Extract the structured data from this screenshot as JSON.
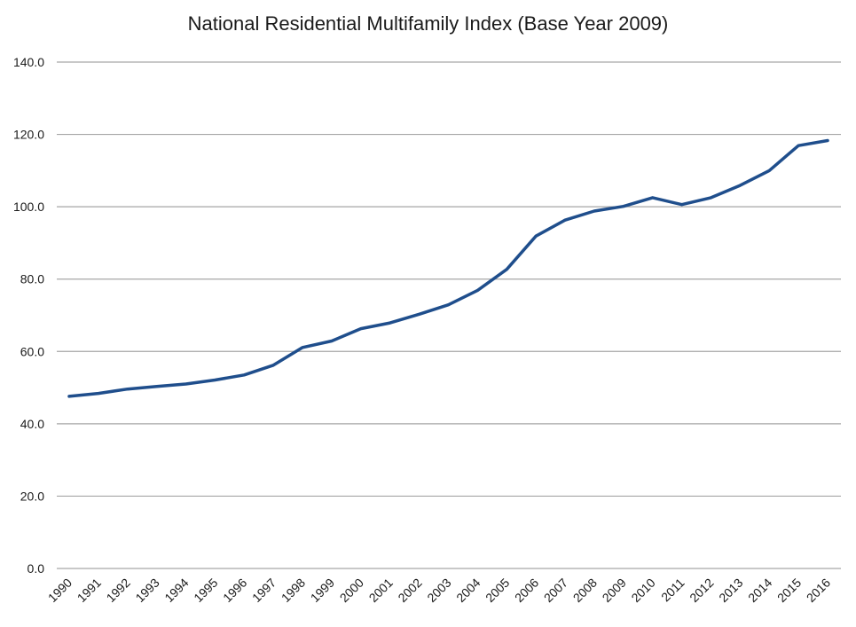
{
  "chart_data": {
    "type": "line",
    "title": "National Residential Multifamily Index (Base Year 2009)",
    "xlabel": "",
    "ylabel": "",
    "categories": [
      "1990",
      "1991",
      "1992",
      "1993",
      "1994",
      "1995",
      "1996",
      "1997",
      "1998",
      "1999",
      "2000",
      "2001",
      "2002",
      "2003",
      "2004",
      "2005",
      "2006",
      "2007",
      "2008",
      "2009",
      "2010",
      "2011",
      "2012",
      "2013",
      "2014",
      "2015",
      "2016"
    ],
    "series": [
      {
        "values": [
          47.6,
          48.4,
          49.6,
          50.3,
          51.0,
          52.1,
          53.5,
          56.2,
          61.1,
          62.9,
          66.3,
          67.9,
          70.3,
          72.9,
          76.9,
          82.7,
          91.9,
          96.3,
          98.8,
          100.1,
          102.5,
          100.6,
          102.5,
          105.9,
          110.0,
          116.9,
          118.3
        ],
        "color": "#1f4e8c"
      }
    ],
    "ylim": [
      0,
      140
    ],
    "yticks": [
      0,
      20,
      40,
      60,
      80,
      100,
      120,
      140
    ],
    "ytick_labels": [
      "0.0",
      "20.0",
      "40.0",
      "60.0",
      "80.0",
      "100.0",
      "120.0",
      "140.0"
    ],
    "grid": true,
    "legend": "none"
  }
}
